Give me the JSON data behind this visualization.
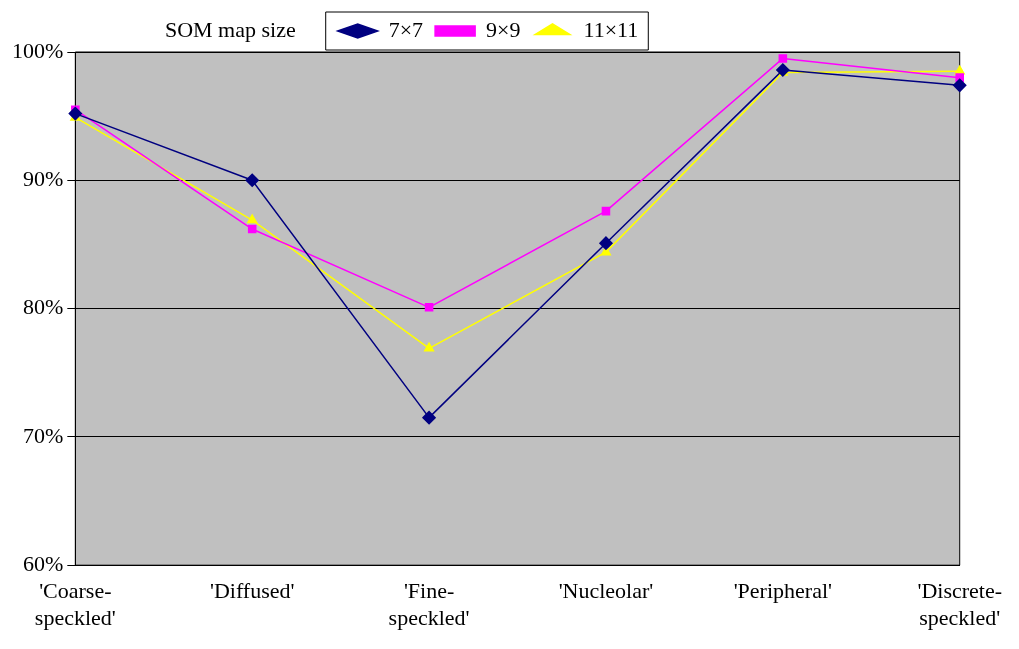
{
  "chart_data": {
    "type": "line",
    "legend_title": "SOM map size",
    "legend": "top",
    "grid": "y",
    "categories": [
      "'Coarse-speckled'",
      "'Diffused'",
      "'Fine-speckled'",
      "'Nucleolar'",
      "'Peripheral'",
      "'Discrete-speckled'"
    ],
    "ylim": [
      60,
      100
    ],
    "yticks": [
      {
        "value": 60,
        "label": "60%"
      },
      {
        "value": 70,
        "label": "70%"
      },
      {
        "value": 80,
        "label": "80%"
      },
      {
        "value": 90,
        "label": "90%"
      },
      {
        "value": 100,
        "label": "100%"
      }
    ],
    "series": [
      {
        "name": "7×7",
        "color": "#000080",
        "marker": "diamond",
        "values": [
          95.2,
          90.0,
          71.5,
          85.1,
          98.6,
          97.4
        ]
      },
      {
        "name": "9×9",
        "color": "#ff00ff",
        "marker": "square",
        "values": [
          95.5,
          86.2,
          80.1,
          87.6,
          99.5,
          98.0
        ]
      },
      {
        "name": "11×11",
        "color": "#ffff00",
        "marker": "triangle",
        "values": [
          94.9,
          86.9,
          76.9,
          84.4,
          98.4,
          98.5
        ]
      }
    ]
  }
}
